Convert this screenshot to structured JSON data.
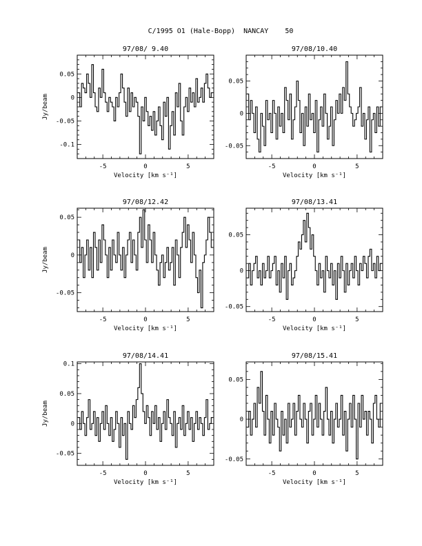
{
  "figure": {
    "title": "C/1995 O1 (Hale-Bopp)  NANCAY    50"
  },
  "chart_data": [
    {
      "type": "line",
      "title": "97/08/ 9.40",
      "xlabel": "Velocity [km s⁻¹]",
      "ylabel": "Jy/beam",
      "xlim": [
        -8,
        8
      ],
      "ylim": [
        -0.13,
        0.09
      ],
      "xticks": [
        "-5",
        "0",
        "5"
      ],
      "yticks": [
        "0.05",
        "0",
        "-0.05",
        "-0.1"
      ],
      "x": [
        -7.8,
        -7.6,
        -7.4,
        -7.2,
        -7.0,
        -6.8,
        -6.6,
        -6.4,
        -6.2,
        -6.0,
        -5.8,
        -5.6,
        -5.4,
        -5.2,
        -5.0,
        -4.8,
        -4.6,
        -4.4,
        -4.2,
        -4.0,
        -3.8,
        -3.6,
        -3.4,
        -3.2,
        -3.0,
        -2.8,
        -2.6,
        -2.4,
        -2.2,
        -2.0,
        -1.8,
        -1.6,
        -1.4,
        -1.2,
        -1.0,
        -0.8,
        -0.6,
        -0.4,
        -0.2,
        0.0,
        0.2,
        0.4,
        0.6,
        0.8,
        1.0,
        1.2,
        1.4,
        1.6,
        1.8,
        2.0,
        2.2,
        2.4,
        2.6,
        2.8,
        3.0,
        3.2,
        3.4,
        3.6,
        3.8,
        4.0,
        4.2,
        4.4,
        4.6,
        4.8,
        5.0,
        5.2,
        5.4,
        5.6,
        5.8,
        6.0,
        6.2,
        6.4,
        6.6,
        6.8,
        7.0,
        7.2,
        7.4,
        7.6,
        7.8
      ],
      "y": [
        0.01,
        -0.02,
        0.03,
        0.02,
        0.01,
        0.05,
        0.03,
        0.0,
        0.07,
        0.01,
        -0.02,
        -0.03,
        0.02,
        0.0,
        0.06,
        0.01,
        -0.01,
        -0.03,
        0.0,
        -0.01,
        -0.02,
        -0.05,
        0.0,
        -0.02,
        0.01,
        0.05,
        0.02,
        -0.01,
        -0.04,
        0.02,
        -0.03,
        0.01,
        -0.02,
        0.0,
        -0.01,
        -0.04,
        -0.12,
        -0.02,
        -0.05,
        0.0,
        -0.03,
        -0.06,
        -0.04,
        -0.07,
        -0.03,
        -0.08,
        -0.05,
        -0.02,
        -0.06,
        -0.09,
        -0.01,
        -0.04,
        0.0,
        -0.11,
        -0.06,
        -0.03,
        -0.08,
        0.01,
        -0.02,
        0.03,
        -0.05,
        -0.08,
        -0.02,
        0.0,
        -0.03,
        0.02,
        -0.01,
        0.01,
        -0.02,
        0.04,
        -0.01,
        0.0,
        0.02,
        -0.01,
        0.03,
        0.05,
        0.02,
        0.0,
        0.01
      ]
    },
    {
      "type": "line",
      "title": "97/08/10.40",
      "xlabel": "Velocity [km s⁻¹]",
      "ylabel": "",
      "xlim": [
        -8,
        8
      ],
      "ylim": [
        -0.07,
        0.09
      ],
      "xticks": [
        "-5",
        "0",
        "5"
      ],
      "yticks": [
        "0.05",
        "0",
        "-0.05"
      ],
      "x": [
        -7.8,
        -7.6,
        -7.4,
        -7.2,
        -7.0,
        -6.8,
        -6.6,
        -6.4,
        -6.2,
        -6.0,
        -5.8,
        -5.6,
        -5.4,
        -5.2,
        -5.0,
        -4.8,
        -4.6,
        -4.4,
        -4.2,
        -4.0,
        -3.8,
        -3.6,
        -3.4,
        -3.2,
        -3.0,
        -2.8,
        -2.6,
        -2.4,
        -2.2,
        -2.0,
        -1.8,
        -1.6,
        -1.4,
        -1.2,
        -1.0,
        -0.8,
        -0.6,
        -0.4,
        -0.2,
        0.0,
        0.2,
        0.4,
        0.6,
        0.8,
        1.0,
        1.2,
        1.4,
        1.6,
        1.8,
        2.0,
        2.2,
        2.4,
        2.6,
        2.8,
        3.0,
        3.2,
        3.4,
        3.6,
        3.8,
        4.0,
        4.2,
        4.4,
        4.6,
        4.8,
        5.0,
        5.2,
        5.4,
        5.6,
        5.8,
        6.0,
        6.2,
        6.4,
        6.6,
        6.8,
        7.0,
        7.2,
        7.4,
        7.6,
        7.8
      ],
      "y": [
        0.03,
        -0.01,
        0.02,
        0.0,
        -0.03,
        0.01,
        -0.04,
        -0.06,
        0.0,
        -0.02,
        -0.05,
        0.02,
        -0.01,
        0.0,
        -0.03,
        0.02,
        0.0,
        -0.04,
        0.01,
        -0.02,
        0.0,
        -0.03,
        0.04,
        0.02,
        -0.01,
        0.03,
        -0.04,
        -0.01,
        0.01,
        0.05,
        0.02,
        -0.03,
        0.0,
        -0.05,
        0.01,
        -0.02,
        0.03,
        -0.01,
        0.0,
        -0.03,
        0.02,
        -0.06,
        -0.01,
        0.01,
        -0.02,
        0.03,
        0.0,
        -0.04,
        -0.02,
        0.01,
        -0.05,
        -0.01,
        0.02,
        0.0,
        0.03,
        0.0,
        0.04,
        0.02,
        0.08,
        0.03,
        0.01,
        0.0,
        -0.02,
        -0.01,
        0.0,
        0.01,
        0.04,
        -0.02,
        0.0,
        -0.04,
        -0.01,
        0.01,
        -0.06,
        -0.01,
        0.0,
        -0.03,
        0.01,
        -0.02,
        0.01
      ]
    },
    {
      "type": "line",
      "title": "97/08/12.42",
      "xlabel": "Velocity [km s⁻¹]",
      "ylabel": "Jy/beam",
      "xlim": [
        -8,
        8
      ],
      "ylim": [
        -0.075,
        0.062
      ],
      "xticks": [
        "-5",
        "0",
        "5"
      ],
      "yticks": [
        "0.05",
        "0",
        "-0.05"
      ],
      "x": [
        -7.8,
        -7.6,
        -7.4,
        -7.2,
        -7.0,
        -6.8,
        -6.6,
        -6.4,
        -6.2,
        -6.0,
        -5.8,
        -5.6,
        -5.4,
        -5.2,
        -5.0,
        -4.8,
        -4.6,
        -4.4,
        -4.2,
        -4.0,
        -3.8,
        -3.6,
        -3.4,
        -3.2,
        -3.0,
        -2.8,
        -2.6,
        -2.4,
        -2.2,
        -2.0,
        -1.8,
        -1.6,
        -1.4,
        -1.2,
        -1.0,
        -0.8,
        -0.6,
        -0.4,
        -0.2,
        0.0,
        0.2,
        0.4,
        0.6,
        0.8,
        1.0,
        1.2,
        1.4,
        1.6,
        1.8,
        2.0,
        2.2,
        2.4,
        2.6,
        2.8,
        3.0,
        3.2,
        3.4,
        3.6,
        3.8,
        4.0,
        4.2,
        4.4,
        4.6,
        4.8,
        5.0,
        5.2,
        5.4,
        5.6,
        5.8,
        6.0,
        6.2,
        6.4,
        6.6,
        6.8,
        7.0,
        7.2,
        7.4,
        7.6,
        7.8
      ],
      "y": [
        0.02,
        -0.01,
        0.01,
        -0.03,
        0.0,
        0.02,
        -0.02,
        0.01,
        -0.03,
        0.03,
        0.01,
        -0.02,
        0.02,
        -0.01,
        0.04,
        0.02,
        0.0,
        -0.03,
        0.01,
        -0.02,
        0.02,
        0.0,
        -0.01,
        0.03,
        0.0,
        -0.02,
        0.01,
        -0.03,
        0.0,
        0.02,
        0.03,
        -0.01,
        0.02,
        0.0,
        -0.02,
        0.03,
        0.05,
        0.01,
        0.06,
        0.02,
        -0.01,
        0.04,
        0.02,
        -0.01,
        0.03,
        0.0,
        -0.02,
        -0.04,
        -0.01,
        0.0,
        -0.03,
        -0.01,
        0.01,
        -0.02,
        -0.01,
        0.01,
        -0.04,
        0.02,
        0.0,
        -0.03,
        0.01,
        0.03,
        0.05,
        0.01,
        0.04,
        0.02,
        -0.01,
        0.03,
        0.0,
        -0.03,
        -0.05,
        -0.02,
        -0.07,
        -0.01,
        0.0,
        0.02,
        0.05,
        0.03,
        0.01
      ]
    },
    {
      "type": "line",
      "title": "97/08/13.41",
      "xlabel": "Velocity [km s⁻¹]",
      "ylabel": "",
      "xlim": [
        -8,
        8
      ],
      "ylim": [
        -0.057,
        0.087
      ],
      "xticks": [
        "-5",
        "0",
        "5"
      ],
      "yticks": [
        "0.05",
        "0",
        "-0.05"
      ],
      "x": [
        -7.8,
        -7.6,
        -7.4,
        -7.2,
        -7.0,
        -6.8,
        -6.6,
        -6.4,
        -6.2,
        -6.0,
        -5.8,
        -5.6,
        -5.4,
        -5.2,
        -5.0,
        -4.8,
        -4.6,
        -4.4,
        -4.2,
        -4.0,
        -3.8,
        -3.6,
        -3.4,
        -3.2,
        -3.0,
        -2.8,
        -2.6,
        -2.4,
        -2.2,
        -2.0,
        -1.8,
        -1.6,
        -1.4,
        -1.2,
        -1.0,
        -0.8,
        -0.6,
        -0.4,
        -0.2,
        0.0,
        0.2,
        0.4,
        0.6,
        0.8,
        1.0,
        1.2,
        1.4,
        1.6,
        1.8,
        2.0,
        2.2,
        2.4,
        2.6,
        2.8,
        3.0,
        3.2,
        3.4,
        3.6,
        3.8,
        4.0,
        4.2,
        4.4,
        4.6,
        4.8,
        5.0,
        5.2,
        5.4,
        5.6,
        5.8,
        6.0,
        6.2,
        6.4,
        6.6,
        6.8,
        7.0,
        7.2,
        7.4,
        7.6,
        7.8
      ],
      "y": [
        -0.01,
        0.01,
        -0.02,
        0.0,
        0.01,
        0.02,
        -0.01,
        0.0,
        -0.02,
        0.01,
        -0.01,
        0.0,
        0.02,
        -0.01,
        0.0,
        0.01,
        0.02,
        -0.02,
        0.0,
        -0.03,
        0.01,
        -0.01,
        0.02,
        -0.04,
        0.0,
        0.01,
        -0.02,
        -0.01,
        0.0,
        0.02,
        0.04,
        0.03,
        0.05,
        0.07,
        0.04,
        0.08,
        0.06,
        0.03,
        0.05,
        0.02,
        0.0,
        -0.02,
        0.01,
        -0.01,
        0.0,
        -0.03,
        0.02,
        0.0,
        -0.01,
        0.01,
        -0.02,
        0.0,
        -0.04,
        0.01,
        -0.01,
        0.02,
        0.0,
        -0.03,
        0.01,
        -0.02,
        0.0,
        0.01,
        -0.01,
        0.02,
        0.0,
        -0.02,
        0.01,
        0.0,
        0.02,
        0.01,
        -0.01,
        0.02,
        0.03,
        0.0,
        0.01,
        -0.01,
        0.02,
        0.0,
        0.01
      ]
    },
    {
      "type": "line",
      "title": "97/08/14.41",
      "xlabel": "Velocity [km s⁻¹]",
      "ylabel": "Jy/beam",
      "xlim": [
        -8,
        8
      ],
      "ylim": [
        -0.07,
        0.103
      ],
      "xticks": [
        "-5",
        "0",
        "5"
      ],
      "yticks": [
        "0.1",
        "0.05",
        "0",
        "-0.05"
      ],
      "x": [
        -7.8,
        -7.6,
        -7.4,
        -7.2,
        -7.0,
        -6.8,
        -6.6,
        -6.4,
        -6.2,
        -6.0,
        -5.8,
        -5.6,
        -5.4,
        -5.2,
        -5.0,
        -4.8,
        -4.6,
        -4.4,
        -4.2,
        -4.0,
        -3.8,
        -3.6,
        -3.4,
        -3.2,
        -3.0,
        -2.8,
        -2.6,
        -2.4,
        -2.2,
        -2.0,
        -1.8,
        -1.6,
        -1.4,
        -1.2,
        -1.0,
        -0.8,
        -0.6,
        -0.4,
        -0.2,
        0.0,
        0.2,
        0.4,
        0.6,
        0.8,
        1.0,
        1.2,
        1.4,
        1.6,
        1.8,
        2.0,
        2.2,
        2.4,
        2.6,
        2.8,
        3.0,
        3.2,
        3.4,
        3.6,
        3.8,
        4.0,
        4.2,
        4.4,
        4.6,
        4.8,
        5.0,
        5.2,
        5.4,
        5.6,
        5.8,
        6.0,
        6.2,
        6.4,
        6.6,
        6.8,
        7.0,
        7.2,
        7.4,
        7.6,
        7.8
      ],
      "y": [
        0.01,
        -0.01,
        0.02,
        0.0,
        -0.02,
        0.01,
        0.04,
        -0.01,
        0.0,
        0.02,
        -0.02,
        0.01,
        -0.03,
        0.0,
        0.02,
        -0.01,
        0.03,
        0.0,
        -0.02,
        0.01,
        -0.03,
        -0.01,
        0.02,
        0.0,
        -0.04,
        0.01,
        -0.02,
        0.0,
        -0.06,
        0.02,
        0.0,
        -0.01,
        0.03,
        0.01,
        0.04,
        0.06,
        0.1,
        0.05,
        0.02,
        0.0,
        0.03,
        0.01,
        -0.02,
        0.02,
        0.0,
        0.03,
        -0.01,
        0.01,
        -0.03,
        0.0,
        0.02,
        -0.01,
        0.04,
        0.01,
        0.0,
        -0.02,
        0.02,
        -0.04,
        0.0,
        0.01,
        -0.01,
        0.03,
        -0.02,
        0.0,
        0.02,
        -0.01,
        0.01,
        -0.03,
        0.0,
        0.02,
        -0.01,
        0.01,
        0.0,
        -0.02,
        0.01,
        0.04,
        -0.01,
        0.0,
        0.01
      ]
    },
    {
      "type": "line",
      "title": "97/08/15.41",
      "xlabel": "Velocity [km s⁻¹]",
      "ylabel": "",
      "xlim": [
        -8,
        8
      ],
      "ylim": [
        -0.058,
        0.072
      ],
      "xticks": [
        "-5",
        "0",
        "5"
      ],
      "yticks": [
        "0.05",
        "0",
        "-0.05"
      ],
      "x": [
        -7.8,
        -7.6,
        -7.4,
        -7.2,
        -7.0,
        -6.8,
        -6.6,
        -6.4,
        -6.2,
        -6.0,
        -5.8,
        -5.6,
        -5.4,
        -5.2,
        -5.0,
        -4.8,
        -4.6,
        -4.4,
        -4.2,
        -4.0,
        -3.8,
        -3.6,
        -3.4,
        -3.2,
        -3.0,
        -2.8,
        -2.6,
        -2.4,
        -2.2,
        -2.0,
        -1.8,
        -1.6,
        -1.4,
        -1.2,
        -1.0,
        -0.8,
        -0.6,
        -0.4,
        -0.2,
        0.0,
        0.2,
        0.4,
        0.6,
        0.8,
        1.0,
        1.2,
        1.4,
        1.6,
        1.8,
        2.0,
        2.2,
        2.4,
        2.6,
        2.8,
        3.0,
        3.2,
        3.4,
        3.6,
        3.8,
        4.0,
        4.2,
        4.4,
        4.6,
        4.8,
        5.0,
        5.2,
        5.4,
        5.6,
        5.8,
        6.0,
        6.2,
        6.4,
        6.6,
        6.8,
        7.0,
        7.2,
        7.4,
        7.6,
        7.8
      ],
      "y": [
        -0.01,
        0.01,
        -0.02,
        0.0,
        0.02,
        -0.01,
        0.04,
        0.02,
        0.06,
        0.01,
        -0.02,
        0.03,
        0.0,
        -0.03,
        0.01,
        -0.02,
        0.02,
        0.0,
        -0.01,
        -0.04,
        0.01,
        -0.02,
        0.0,
        -0.03,
        0.02,
        -0.01,
        0.0,
        0.02,
        -0.02,
        0.01,
        0.03,
        0.0,
        -0.01,
        0.02,
        0.0,
        -0.03,
        0.01,
        0.02,
        -0.02,
        0.0,
        0.03,
        -0.01,
        0.02,
        0.0,
        -0.02,
        0.01,
        0.04,
        0.0,
        -0.02,
        0.01,
        -0.03,
        0.0,
        0.02,
        -0.01,
        0.0,
        0.03,
        -0.02,
        0.01,
        -0.04,
        0.0,
        0.02,
        -0.01,
        0.03,
        0.0,
        -0.05,
        0.02,
        -0.01,
        0.03,
        0.0,
        0.01,
        -0.02,
        0.01,
        0.0,
        -0.03,
        0.02,
        0.03,
        0.0,
        -0.01,
        0.02
      ]
    }
  ]
}
